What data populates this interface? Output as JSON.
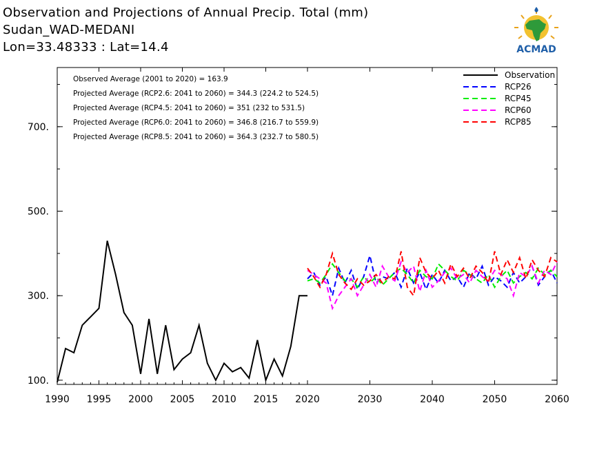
{
  "header": {
    "line1": "Observation and Projections of Annual Precip. Total (mm)",
    "line2": "Sudan_WAD-MEDANI",
    "line3": "Lon=33.48333 : Lat=14.4"
  },
  "logo": {
    "text": "ACMAD",
    "icon": "africa-sun-logo-icon"
  },
  "colors": {
    "Observation": "#000000",
    "RCP26": "#0000ff",
    "RCP45": "#00ee00",
    "RCP60": "#ff00ff",
    "RCP85": "#ff0000"
  },
  "chart_data": {
    "type": "line",
    "title": "Observation and Projections of Annual Precip. Total (mm)",
    "xlim": [
      1990,
      2060
    ],
    "ylim": [
      90,
      840
    ],
    "xticks": [
      "1990",
      "1995",
      "2000",
      "2005",
      "2010",
      "2015",
      "2020",
      "2030",
      "2040",
      "2050",
      "2060"
    ],
    "yticks": [
      "100.",
      "300.",
      "500.",
      "700."
    ],
    "grid": false,
    "legend_position": "top-right",
    "annotations": [
      "Observed Average (2001 to 2020) = 163.9",
      "Projected Average (RCP2.6: 2041 to 2060) = 344.3 (224.2 to 524.5)",
      "Projected Average (RCP4.5: 2041 to 2060) = 351 (232 to 531.5)",
      "Projected Average (RCP6.0: 2041 to 2060) = 346.8 (216.7 to 559.9)",
      "Projected Average (RCP8.5: 2041 to 2060) = 364.3 (232.7 to 580.5)"
    ],
    "series": [
      {
        "name": "Observation",
        "style": "solid",
        "x": [
          1990,
          1991,
          1992,
          1993,
          1994,
          1995,
          1996,
          1997,
          1998,
          1999,
          2000,
          2001,
          2002,
          2003,
          2004,
          2005,
          2006,
          2007,
          2008,
          2009,
          2010,
          2011,
          2012,
          2013,
          2014,
          2015,
          2016,
          2017,
          2018,
          2019,
          2020
        ],
        "values": [
          95,
          175,
          165,
          230,
          250,
          270,
          430,
          350,
          260,
          230,
          115,
          245,
          115,
          230,
          125,
          150,
          165,
          230,
          140,
          100,
          140,
          120,
          130,
          105,
          195,
          100,
          150,
          110,
          180,
          300,
          300
        ]
      },
      {
        "name": "RCP26",
        "style": "dashed",
        "x": [
          2020,
          2021,
          2022,
          2023,
          2024,
          2025,
          2026,
          2027,
          2028,
          2029,
          2030,
          2031,
          2032,
          2033,
          2034,
          2035,
          2036,
          2037,
          2038,
          2039,
          2040,
          2041,
          2042,
          2043,
          2044,
          2045,
          2046,
          2047,
          2048,
          2049,
          2050,
          2051,
          2052,
          2053,
          2054,
          2055,
          2056,
          2057,
          2058,
          2059,
          2060
        ],
        "values": [
          340,
          355,
          325,
          345,
          300,
          365,
          330,
          360,
          315,
          345,
          395,
          330,
          345,
          340,
          355,
          320,
          365,
          330,
          355,
          315,
          350,
          330,
          360,
          335,
          345,
          320,
          355,
          340,
          370,
          325,
          345,
          335,
          320,
          355,
          330,
          345,
          370,
          325,
          345,
          360,
          330
        ]
      },
      {
        "name": "RCP45",
        "style": "dashed",
        "x": [
          2020,
          2021,
          2022,
          2023,
          2024,
          2025,
          2026,
          2027,
          2028,
          2029,
          2030,
          2031,
          2032,
          2033,
          2034,
          2035,
          2036,
          2037,
          2038,
          2039,
          2040,
          2041,
          2042,
          2043,
          2044,
          2045,
          2046,
          2047,
          2048,
          2049,
          2050,
          2051,
          2052,
          2053,
          2054,
          2055,
          2056,
          2057,
          2058,
          2059,
          2060
        ],
        "values": [
          335,
          340,
          330,
          350,
          375,
          355,
          335,
          340,
          320,
          345,
          330,
          345,
          325,
          340,
          355,
          365,
          350,
          330,
          360,
          345,
          340,
          375,
          360,
          345,
          335,
          360,
          350,
          340,
          330,
          350,
          320,
          345,
          360,
          330,
          345,
          355,
          340,
          365,
          350,
          360,
          345
        ]
      },
      {
        "name": "RCP60",
        "style": "dashed",
        "x": [
          2020,
          2021,
          2022,
          2023,
          2024,
          2025,
          2026,
          2027,
          2028,
          2029,
          2030,
          2031,
          2032,
          2033,
          2034,
          2035,
          2036,
          2037,
          2038,
          2039,
          2040,
          2041,
          2042,
          2043,
          2044,
          2045,
          2046,
          2047,
          2048,
          2049,
          2050,
          2051,
          2052,
          2053,
          2054,
          2055,
          2056,
          2057,
          2058,
          2059,
          2060
        ],
        "values": [
          360,
          350,
          340,
          330,
          270,
          300,
          320,
          340,
          300,
          325,
          350,
          320,
          370,
          345,
          335,
          380,
          355,
          370,
          310,
          360,
          320,
          335,
          355,
          365,
          340,
          350,
          330,
          360,
          345,
          335,
          360,
          350,
          340,
          300,
          355,
          345,
          370,
          330,
          360,
          350,
          380
        ]
      },
      {
        "name": "RCP85",
        "style": "dashed",
        "x": [
          2020,
          2021,
          2022,
          2023,
          2024,
          2025,
          2026,
          2027,
          2028,
          2029,
          2030,
          2031,
          2032,
          2033,
          2034,
          2035,
          2036,
          2037,
          2038,
          2039,
          2040,
          2041,
          2042,
          2043,
          2044,
          2045,
          2046,
          2047,
          2048,
          2049,
          2050,
          2051,
          2052,
          2053,
          2054,
          2055,
          2056,
          2057,
          2058,
          2059,
          2060
        ],
        "values": [
          365,
          345,
          320,
          350,
          400,
          350,
          330,
          315,
          340,
          325,
          335,
          350,
          330,
          345,
          340,
          405,
          320,
          300,
          390,
          355,
          340,
          360,
          330,
          375,
          345,
          365,
          340,
          370,
          355,
          330,
          405,
          350,
          385,
          355,
          390,
          340,
          385,
          360,
          345,
          390,
          380
        ]
      }
    ]
  }
}
